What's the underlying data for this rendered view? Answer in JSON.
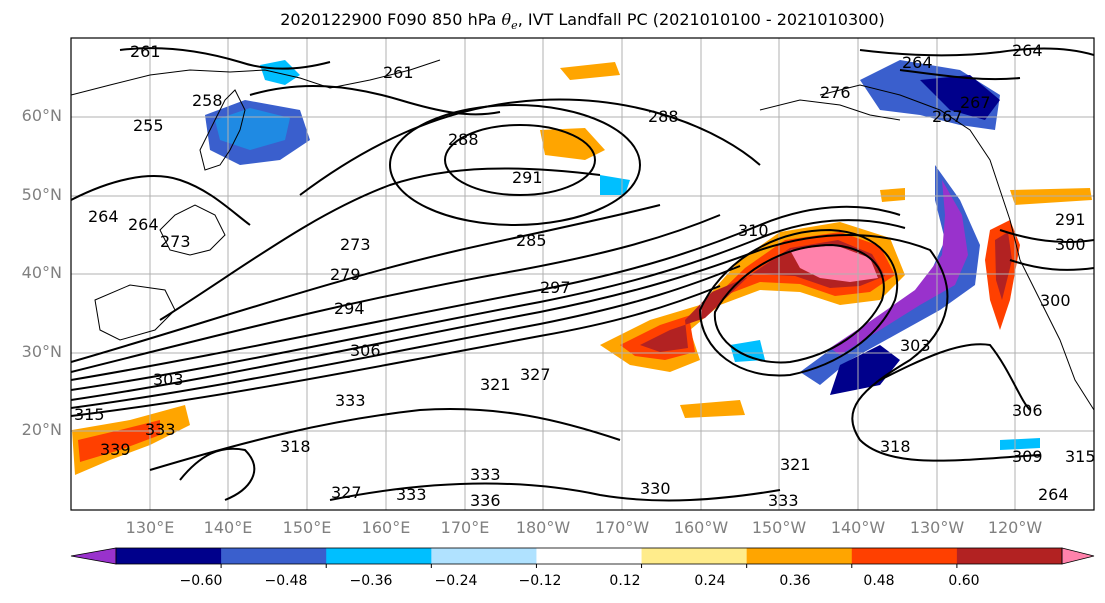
{
  "title": {
    "prefix": "2020122900 F090 850 hPa ",
    "theta": "θ",
    "theta_sub": "e",
    "suffix": ", IVT Landfall PC (2021010100 - 2021010300)"
  },
  "map": {
    "lat_labels": [
      "60°N",
      "50°N",
      "40°N",
      "30°N",
      "20°N"
    ],
    "lon_labels": [
      "130°E",
      "140°E",
      "150°E",
      "160°E",
      "170°E",
      "180°W",
      "170°W",
      "160°W",
      "150°W",
      "140°W",
      "130°W",
      "120°W"
    ],
    "contour_labels": [
      "261",
      "261",
      "264",
      "264",
      "258",
      "255",
      "267",
      "273",
      "288",
      "291",
      "288",
      "264",
      "264",
      "273",
      "279",
      "285",
      "297",
      "294",
      "310",
      "306",
      "303",
      "300",
      "303",
      "318",
      "321",
      "327",
      "315",
      "333",
      "333",
      "339",
      "333",
      "333",
      "330",
      "336",
      "306",
      "309",
      "318",
      "321",
      "333",
      "327",
      "315",
      "264",
      "267",
      "276",
      "300",
      "291"
    ]
  },
  "colorbar": {
    "ticks": [
      "−0.60",
      "−0.48",
      "−0.36",
      "−0.24",
      "−0.12",
      "0.12",
      "0.24",
      "0.36",
      "0.48",
      "0.60"
    ],
    "colors": [
      "#9932cc",
      "#00008b",
      "#3a5fcd",
      "#00bfff",
      "#b0e2ff",
      "#ffffff",
      "#ffec8b",
      "#ffa500",
      "#ff4000",
      "#b22222",
      "#ff82ab"
    ]
  }
}
